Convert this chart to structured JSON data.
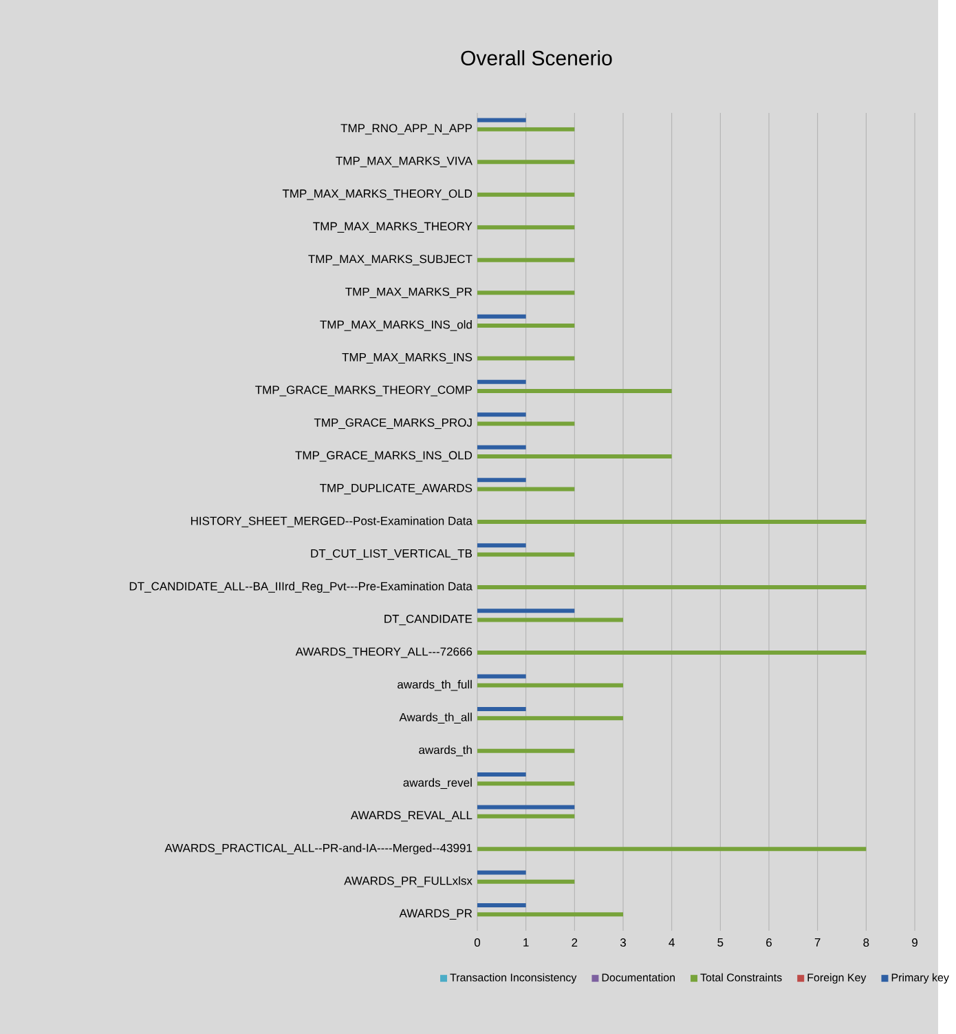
{
  "chart_data": {
    "type": "bar",
    "orientation": "horizontal",
    "title": "Overall Scenerio",
    "categories": [
      "TMP_RNO_APP_N_APP",
      "TMP_MAX_MARKS_VIVA",
      "TMP_MAX_MARKS_THEORY_OLD",
      "TMP_MAX_MARKS_THEORY",
      "TMP_MAX_MARKS_SUBJECT",
      "TMP_MAX_MARKS_PR",
      "TMP_MAX_MARKS_INS_old",
      "TMP_MAX_MARKS_INS",
      "TMP_GRACE_MARKS_THEORY_COMP",
      "TMP_GRACE_MARKS_PROJ",
      "TMP_GRACE_MARKS_INS_OLD",
      "TMP_DUPLICATE_AWARDS",
      "HISTORY_SHEET_MERGED--Post-Examination Data",
      "DT_CUT_LIST_VERTICAL_TB",
      "DT_CANDIDATE_ALL--BA_IIIrd_Reg_Pvt---Pre-Examination Data",
      "DT_CANDIDATE",
      "AWARDS_THEORY_ALL---72666",
      "awards_th_full",
      "Awards_th_all",
      "awards_th",
      "awards_revel",
      "AWARDS_REVAL_ALL",
      "AWARDS_PRACTICAL_ALL--PR-and-IA----Merged--43991",
      "AWARDS_PR_FULLxlsx",
      "AWARDS_PR"
    ],
    "series": [
      {
        "name": "Transaction Inconsistency",
        "color": "#4bacc6",
        "values": [
          0,
          0,
          0,
          0,
          0,
          0,
          0,
          0,
          0,
          0,
          0,
          0,
          0,
          0,
          0,
          0,
          0,
          0,
          0,
          0,
          0,
          0,
          0,
          0,
          0
        ]
      },
      {
        "name": "Documentation",
        "color": "#7d60a0",
        "values": [
          0,
          0,
          0,
          0,
          0,
          0,
          0,
          0,
          0,
          0,
          0,
          0,
          0,
          0,
          0,
          0,
          0,
          0,
          0,
          0,
          0,
          0,
          0,
          0,
          0
        ]
      },
      {
        "name": "Total Constraints",
        "color": "#77a33a",
        "values": [
          2,
          2,
          2,
          2,
          2,
          2,
          2,
          2,
          4,
          2,
          4,
          2,
          8,
          2,
          8,
          3,
          8,
          3,
          3,
          2,
          2,
          2,
          8,
          2,
          3
        ]
      },
      {
        "name": "Foreign Key",
        "color": "#be4b48",
        "values": [
          0,
          0,
          0,
          0,
          0,
          0,
          0,
          0,
          0,
          0,
          0,
          0,
          0,
          0,
          0,
          0,
          0,
          0,
          0,
          0,
          0,
          0,
          0,
          0,
          0
        ]
      },
      {
        "name": "Primary key",
        "color": "#2e5fa3",
        "values": [
          1,
          0,
          0,
          0,
          0,
          0,
          1,
          0,
          1,
          1,
          1,
          1,
          0,
          1,
          0,
          2,
          0,
          1,
          1,
          0,
          1,
          2,
          0,
          1,
          1
        ]
      }
    ],
    "xlim": [
      0,
      9
    ],
    "xticks": [
      0,
      1,
      2,
      3,
      4,
      5,
      6,
      7,
      8,
      9
    ],
    "grid": "x",
    "legend": "bottom"
  }
}
